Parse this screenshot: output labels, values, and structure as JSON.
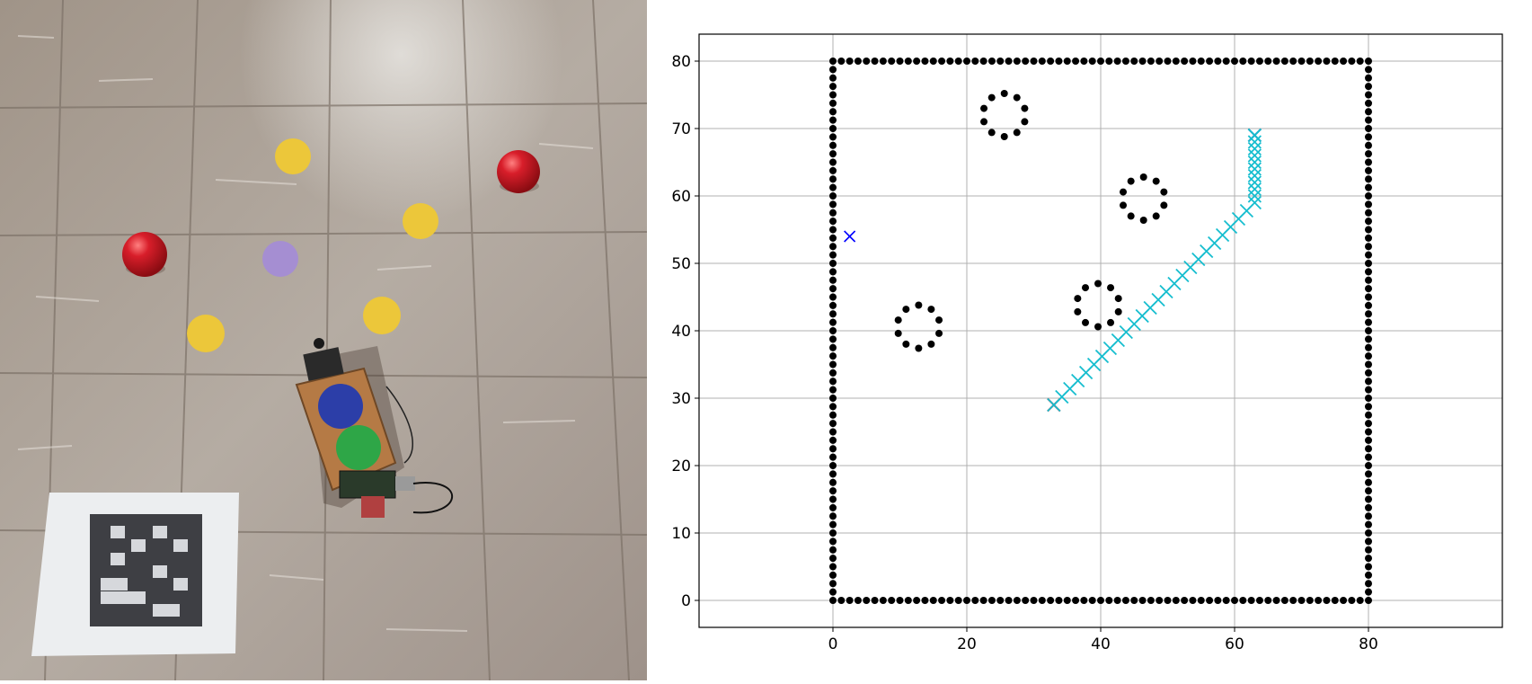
{
  "photo": {
    "description_icons": [
      "robot-icon",
      "ball-icon",
      "marker-disc-icon",
      "fiducial-marker-icon"
    ]
  },
  "colors": {
    "boundary": "#000000",
    "obstacle": "#000000",
    "path": "#17becf",
    "start": "#d62728",
    "goal": "#1f77b4",
    "other_marker": "#0000ff",
    "grid": "#b0b0b0"
  },
  "chart_data": {
    "type": "scatter",
    "title": "",
    "xlabel": "",
    "ylabel": "",
    "xlim": [
      -20,
      100
    ],
    "ylim": [
      -4,
      84
    ],
    "xticks": [
      0,
      20,
      40,
      60,
      80
    ],
    "yticks": [
      0,
      10,
      20,
      30,
      40,
      50,
      60,
      70,
      80
    ],
    "grid": true,
    "boundary": {
      "x0": 0,
      "y0": 0,
      "x1": 80,
      "y1": 80,
      "spacing": 1.25
    },
    "obstacles": [
      {
        "cx": 25.6,
        "cy": 72.0,
        "r": 3.2,
        "points": 10
      },
      {
        "cx": 46.4,
        "cy": 59.6,
        "r": 3.2,
        "points": 10
      },
      {
        "cx": 39.6,
        "cy": 43.8,
        "r": 3.2,
        "points": 10
      },
      {
        "cx": 12.8,
        "cy": 40.6,
        "r": 3.2,
        "points": 10
      }
    ],
    "path": [
      {
        "x": 33.0,
        "y": 29.0
      },
      {
        "x": 34.2,
        "y": 30.2
      },
      {
        "x": 35.4,
        "y": 31.4
      },
      {
        "x": 36.6,
        "y": 32.6
      },
      {
        "x": 37.8,
        "y": 33.8
      },
      {
        "x": 39.0,
        "y": 35.0
      },
      {
        "x": 40.2,
        "y": 36.2
      },
      {
        "x": 41.4,
        "y": 37.4
      },
      {
        "x": 42.6,
        "y": 38.6
      },
      {
        "x": 43.8,
        "y": 39.8
      },
      {
        "x": 45.0,
        "y": 41.0
      },
      {
        "x": 46.2,
        "y": 42.2
      },
      {
        "x": 47.4,
        "y": 43.4
      },
      {
        "x": 48.6,
        "y": 44.6
      },
      {
        "x": 49.8,
        "y": 45.8
      },
      {
        "x": 51.0,
        "y": 47.0
      },
      {
        "x": 52.2,
        "y": 48.2
      },
      {
        "x": 53.4,
        "y": 49.4
      },
      {
        "x": 54.6,
        "y": 50.6
      },
      {
        "x": 55.8,
        "y": 51.8
      },
      {
        "x": 57.0,
        "y": 53.0
      },
      {
        "x": 58.2,
        "y": 54.2
      },
      {
        "x": 59.4,
        "y": 55.4
      },
      {
        "x": 60.6,
        "y": 56.6
      },
      {
        "x": 61.8,
        "y": 57.8
      },
      {
        "x": 63.0,
        "y": 59.0
      },
      {
        "x": 63.0,
        "y": 60.0
      },
      {
        "x": 63.0,
        "y": 61.0
      },
      {
        "x": 63.0,
        "y": 62.0
      },
      {
        "x": 63.0,
        "y": 63.0
      },
      {
        "x": 63.0,
        "y": 64.0
      },
      {
        "x": 63.0,
        "y": 65.0
      },
      {
        "x": 63.0,
        "y": 66.0
      },
      {
        "x": 63.0,
        "y": 67.0
      },
      {
        "x": 63.0,
        "y": 68.0
      },
      {
        "x": 63.0,
        "y": 69.0
      }
    ],
    "start": {
      "x": 33.0,
      "y": 29.0
    },
    "goal": {
      "x": 63.0,
      "y": 69.0
    },
    "other_marker": {
      "x": 2.5,
      "y": 54.0
    }
  }
}
